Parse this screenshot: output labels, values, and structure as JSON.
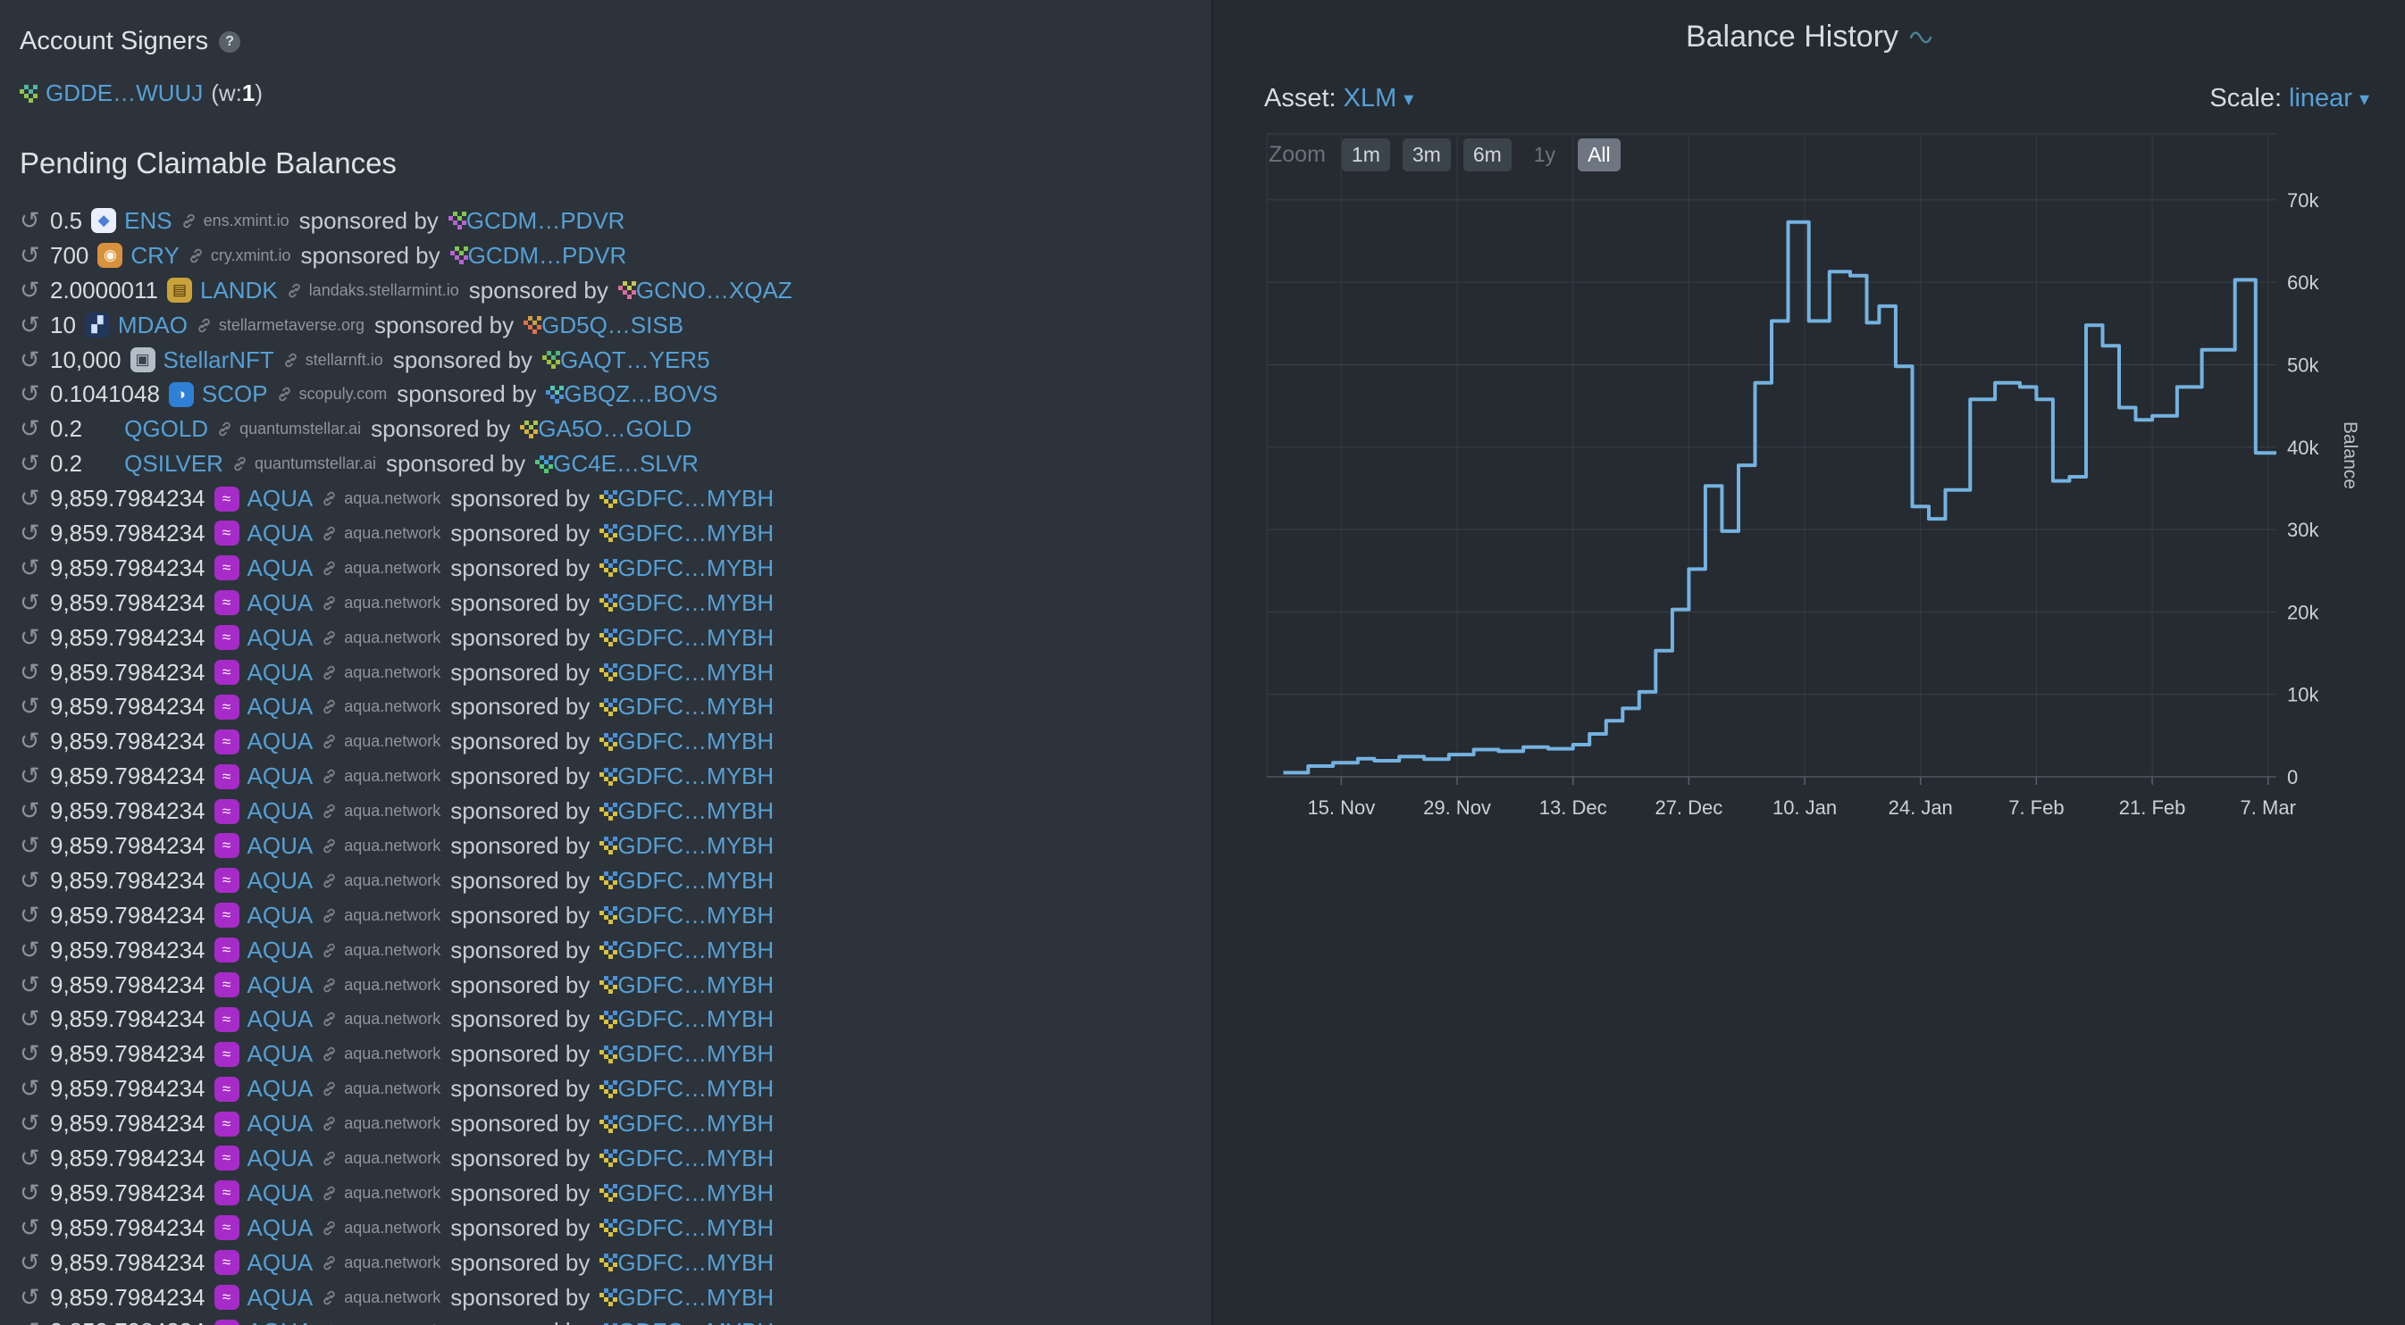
{
  "theme": {
    "left_bg": "#2d333a",
    "right_bg": "#262b31",
    "link_color": "#55a0d6",
    "line_color": "#74b2e0"
  },
  "left_panel": {
    "signers": {
      "title": "Account Signers",
      "help_glyph": "?",
      "items": [
        {
          "address": "GDDE…WUUJ",
          "weight_prefix": "(w:",
          "weight": "1",
          "weight_suffix": ")",
          "identicon": [
            "#8fc74f",
            "#4fb8a6"
          ]
        }
      ]
    },
    "claimable": {
      "title": "Pending Claimable Balances",
      "clock_glyph": "↺",
      "sponsored_by_label": "sponsored by",
      "rows": [
        {
          "amount": "0.5",
          "asset": "ENS",
          "domain": "ens.xmint.io",
          "sponsor": "GCDM…PDVR",
          "icon": {
            "name": "ens-asset-icon",
            "bg": "#eaf0fb",
            "fg": "#4a7fd4",
            "glyph": "◆"
          },
          "identicon": [
            "#b765d4",
            "#7dc752"
          ]
        },
        {
          "amount": "700",
          "asset": "CRY",
          "domain": "cry.xmint.io",
          "sponsor": "GCDM…PDVR",
          "icon": {
            "name": "cry-asset-icon",
            "bg": "#d8913c",
            "fg": "#fff7e8",
            "glyph": "◉"
          },
          "identicon": [
            "#b765d4",
            "#7dc752"
          ]
        },
        {
          "amount": "2.0000011",
          "asset": "LANDK",
          "domain": "landaks.stellarmint.io",
          "sponsor": "GCNO…XQAZ",
          "icon": {
            "name": "landk-asset-icon",
            "bg": "#c9a23a",
            "fg": "#45350e",
            "glyph": "▤"
          },
          "identicon": [
            "#e06ca0",
            "#c8c850"
          ]
        },
        {
          "amount": "10",
          "asset": "MDAO",
          "domain": "stellarmetaverse.org",
          "sponsor": "GD5Q…SISB",
          "icon": {
            "name": "mdao-asset-icon",
            "bg": "#22365c",
            "fg": "#cfe0ff",
            "glyph": "▞"
          },
          "identicon": [
            "#e0704a",
            "#d0a040"
          ]
        },
        {
          "amount": "10,000",
          "asset": "StellarNFT",
          "domain": "stellarnft.io",
          "sponsor": "GAQT…YER5",
          "icon": {
            "name": "stellarnft-asset-icon",
            "bg": "#b3bdc7",
            "fg": "#39424c",
            "glyph": "▣"
          },
          "identicon": [
            "#9ac23c",
            "#50b87a"
          ]
        },
        {
          "amount": "0.1041048",
          "asset": "SCOP",
          "domain": "scopuly.com",
          "sponsor": "GBQZ…BOVS",
          "icon": {
            "name": "scop-asset-icon",
            "bg": "#2f7fd6",
            "fg": "#ffffff",
            "glyph": "◑"
          },
          "identicon": [
            "#4a90d9",
            "#50c8b8"
          ]
        },
        {
          "amount": "0.2",
          "asset": "QGOLD",
          "domain": "quantumstellar.ai",
          "sponsor": "GA5O…GOLD",
          "icon": null,
          "identicon": [
            "#d9b23c",
            "#a8c84f"
          ]
        },
        {
          "amount": "0.2",
          "asset": "QSILVER",
          "domain": "quantumstellar.ai",
          "sponsor": "GC4E…SLVR",
          "icon": null,
          "identicon": [
            "#50c878",
            "#3ca0d9"
          ]
        },
        {
          "amount": "9,859.7984234",
          "asset": "AQUA",
          "domain": "aqua.network",
          "sponsor": "GDFC…MYBH",
          "icon": {
            "name": "aqua-asset-icon",
            "bg": "#a62bc8",
            "fg": "#ffffff",
            "glyph": "≈"
          },
          "identicon": [
            "#d9c23c",
            "#4a90d9"
          ],
          "repeat": 25
        }
      ]
    }
  },
  "right_panel": {
    "title": "Balance History",
    "asset_label": "Asset:",
    "asset_value": "XLM",
    "scale_label": "Scale:",
    "scale_value": "linear",
    "caret": "▾",
    "zoom_label": "Zoom",
    "zoom_buttons": [
      {
        "label": "1m",
        "state": "normal"
      },
      {
        "label": "3m",
        "state": "normal"
      },
      {
        "label": "6m",
        "state": "normal"
      },
      {
        "label": "1y",
        "state": "disabled"
      },
      {
        "label": "All",
        "state": "active"
      }
    ]
  },
  "chart_data": {
    "type": "line",
    "step": true,
    "title": "Balance History",
    "ylabel": "Balance",
    "grid": true,
    "legend": "none",
    "xlim": [
      0,
      122
    ],
    "ylim": [
      0,
      78000
    ],
    "x_ticks": [
      {
        "pos": 9,
        "label": "15. Nov"
      },
      {
        "pos": 23,
        "label": "29. Nov"
      },
      {
        "pos": 37,
        "label": "13. Dec"
      },
      {
        "pos": 51,
        "label": "27. Dec"
      },
      {
        "pos": 65,
        "label": "10. Jan"
      },
      {
        "pos": 79,
        "label": "24. Jan"
      },
      {
        "pos": 93,
        "label": "7. Feb"
      },
      {
        "pos": 107,
        "label": "21. Feb"
      },
      {
        "pos": 121,
        "label": "7. Mar"
      }
    ],
    "y_ticks": [
      {
        "value": 0,
        "label": "0"
      },
      {
        "value": 10000,
        "label": "10k"
      },
      {
        "value": 20000,
        "label": "20k"
      },
      {
        "value": 30000,
        "label": "30k"
      },
      {
        "value": 40000,
        "label": "40k"
      },
      {
        "value": 50000,
        "label": "50k"
      },
      {
        "value": 60000,
        "label": "60k"
      },
      {
        "value": 70000,
        "label": "70k"
      }
    ],
    "series": [
      {
        "name": "Balance (XLM)",
        "color": "#74b2e0",
        "points": [
          [
            2,
            500
          ],
          [
            5,
            1300
          ],
          [
            8,
            1700
          ],
          [
            11,
            2200
          ],
          [
            13,
            1950
          ],
          [
            16,
            2450
          ],
          [
            19,
            2150
          ],
          [
            22,
            2700
          ],
          [
            25,
            3300
          ],
          [
            28,
            3100
          ],
          [
            31,
            3600
          ],
          [
            34,
            3400
          ],
          [
            37,
            3900
          ],
          [
            39,
            5200
          ],
          [
            41,
            6800
          ],
          [
            43,
            8300
          ],
          [
            45,
            10300
          ],
          [
            47,
            15300
          ],
          [
            49,
            20300
          ],
          [
            51,
            25200
          ],
          [
            53,
            35300
          ],
          [
            55,
            29800
          ],
          [
            57,
            37800
          ],
          [
            59,
            47800
          ],
          [
            61,
            55300
          ],
          [
            63,
            67300
          ],
          [
            65.5,
            55300
          ],
          [
            68,
            61300
          ],
          [
            70.5,
            60800
          ],
          [
            72.5,
            55100
          ],
          [
            74,
            57100
          ],
          [
            76,
            49800
          ],
          [
            78,
            32800
          ],
          [
            80,
            31300
          ],
          [
            82,
            34800
          ],
          [
            85,
            45800
          ],
          [
            88,
            47800
          ],
          [
            91,
            47300
          ],
          [
            93,
            45800
          ],
          [
            95,
            35900
          ],
          [
            97,
            36400
          ],
          [
            99,
            54800
          ],
          [
            101,
            52300
          ],
          [
            103,
            44800
          ],
          [
            105,
            43300
          ],
          [
            107,
            43800
          ],
          [
            110,
            47300
          ],
          [
            113,
            51800
          ],
          [
            117,
            60300
          ],
          [
            119.5,
            39300
          ],
          [
            122,
            39300
          ]
        ]
      }
    ]
  }
}
